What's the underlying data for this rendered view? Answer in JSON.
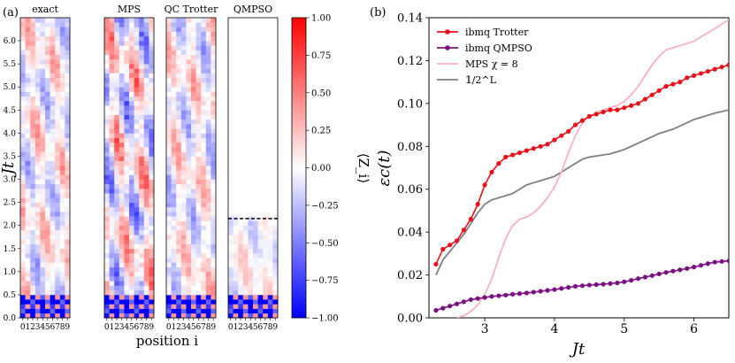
{
  "chart_data": [
    {
      "type": "heatmap",
      "panel_label": "(a)",
      "panels": [
        {
          "title": "exact",
          "truncate_above_t": null,
          "seed": 11
        },
        {
          "title": "MPS",
          "truncate_above_t": null,
          "seed": 23
        },
        {
          "title": "QC Trotter",
          "truncate_above_t": null,
          "seed": 37
        },
        {
          "title": "QMPSO",
          "truncate_above_t": 2.15,
          "seed": 53
        }
      ],
      "positions": [
        "0",
        "1",
        "2",
        "3",
        "4",
        "5",
        "6",
        "7",
        "8",
        "9"
      ],
      "ylabel": "Jt",
      "xlabel": "position i",
      "yticks": [
        "0.0",
        "0.5",
        "1.0",
        "1.5",
        "2.0",
        "2.5",
        "3.0",
        "3.5",
        "4.0",
        "4.5",
        "5.0",
        "5.5",
        "6.0"
      ],
      "ylim": [
        0,
        6.5
      ],
      "colorbar": {
        "label": "⟨Z_i⟩",
        "ticks": [
          "1.00",
          "0.75",
          "0.50",
          "0.25",
          "0.00",
          "−0.25",
          "−0.50",
          "−0.75",
          "−1.00"
        ],
        "range": [
          -1,
          1
        ],
        "colormap": "bwr"
      }
    },
    {
      "type": "line",
      "panel_label": "(b)",
      "xlabel": "Jt",
      "ylabel": "εc(t)",
      "xlim": [
        2.2,
        6.5
      ],
      "ylim": [
        0.0,
        0.14
      ],
      "xticks": [
        "3",
        "4",
        "5",
        "6"
      ],
      "yticks": [
        "0.00",
        "0.02",
        "0.04",
        "0.06",
        "0.08",
        "0.10",
        "0.12",
        "0.14"
      ],
      "legend_position": "top-left",
      "series": [
        {
          "name": "ibmq Trotter",
          "color": "#e8111b",
          "markers": true,
          "x": [
            2.3,
            2.4,
            2.5,
            2.6,
            2.7,
            2.8,
            2.9,
            3.0,
            3.1,
            3.2,
            3.3,
            3.4,
            3.5,
            3.6,
            3.7,
            3.8,
            3.9,
            4.0,
            4.1,
            4.2,
            4.3,
            4.4,
            4.5,
            4.6,
            4.7,
            4.8,
            4.9,
            5.0,
            5.1,
            5.2,
            5.3,
            5.4,
            5.5,
            5.6,
            5.7,
            5.8,
            5.9,
            6.0,
            6.1,
            6.2,
            6.3,
            6.4,
            6.5
          ],
          "values": [
            0.025,
            0.032,
            0.034,
            0.036,
            0.041,
            0.046,
            0.053,
            0.062,
            0.068,
            0.072,
            0.075,
            0.076,
            0.077,
            0.078,
            0.079,
            0.08,
            0.081,
            0.083,
            0.085,
            0.087,
            0.09,
            0.092,
            0.094,
            0.095,
            0.096,
            0.097,
            0.097,
            0.098,
            0.099,
            0.1,
            0.102,
            0.104,
            0.106,
            0.108,
            0.109,
            0.11,
            0.112,
            0.113,
            0.114,
            0.115,
            0.116,
            0.117,
            0.118
          ]
        },
        {
          "name": "ibmq QMPSO",
          "color": "#7b0f83",
          "markers": true,
          "x": [
            2.3,
            2.4,
            2.5,
            2.6,
            2.7,
            2.8,
            2.9,
            3.0,
            3.1,
            3.2,
            3.3,
            3.4,
            3.5,
            3.6,
            3.7,
            3.8,
            3.9,
            4.0,
            4.1,
            4.2,
            4.3,
            4.4,
            4.5,
            4.6,
            4.7,
            4.8,
            4.9,
            5.0,
            5.1,
            5.2,
            5.3,
            5.4,
            5.5,
            5.6,
            5.7,
            5.8,
            5.9,
            6.0,
            6.1,
            6.2,
            6.3,
            6.4,
            6.5
          ],
          "values": [
            0.0035,
            0.0045,
            0.0055,
            0.0065,
            0.0075,
            0.0085,
            0.009,
            0.0095,
            0.01,
            0.0103,
            0.0106,
            0.011,
            0.0113,
            0.0116,
            0.012,
            0.0124,
            0.0128,
            0.0132,
            0.0137,
            0.0142,
            0.0147,
            0.015,
            0.0153,
            0.0155,
            0.0157,
            0.016,
            0.0163,
            0.0168,
            0.0175,
            0.0183,
            0.019,
            0.0197,
            0.0205,
            0.0212,
            0.0218,
            0.0224,
            0.023,
            0.0237,
            0.0245,
            0.0253,
            0.026,
            0.0263,
            0.0266
          ]
        },
        {
          "name": "MPS χ = 8",
          "color": "#f7b2c2",
          "markers": false,
          "x": [
            2.6,
            2.7,
            2.8,
            2.9,
            3.0,
            3.1,
            3.2,
            3.3,
            3.4,
            3.5,
            3.6,
            3.7,
            3.8,
            3.9,
            4.0,
            4.1,
            4.2,
            4.3,
            4.4,
            4.5,
            4.6,
            4.7,
            4.8,
            4.9,
            5.0,
            5.1,
            5.2,
            5.3,
            5.4,
            5.5,
            5.6,
            5.7,
            5.8,
            5.9,
            6.0,
            6.1,
            6.2,
            6.3,
            6.4,
            6.5
          ],
          "values": [
            0.0,
            0.001,
            0.003,
            0.006,
            0.011,
            0.018,
            0.028,
            0.037,
            0.043,
            0.046,
            0.047,
            0.049,
            0.052,
            0.056,
            0.061,
            0.068,
            0.077,
            0.085,
            0.091,
            0.094,
            0.096,
            0.097,
            0.098,
            0.099,
            0.101,
            0.104,
            0.108,
            0.113,
            0.118,
            0.122,
            0.125,
            0.126,
            0.127,
            0.128,
            0.129,
            0.131,
            0.133,
            0.135,
            0.137,
            0.139
          ]
        },
        {
          "name": "𝟙/2^L",
          "color": "#808080",
          "markers": false,
          "x": [
            2.3,
            2.4,
            2.5,
            2.6,
            2.7,
            2.8,
            2.9,
            3.0,
            3.1,
            3.2,
            3.3,
            3.4,
            3.5,
            3.6,
            3.7,
            3.8,
            3.9,
            4.0,
            4.1,
            4.2,
            4.3,
            4.4,
            4.5,
            4.6,
            4.7,
            4.8,
            4.9,
            5.0,
            5.1,
            5.2,
            5.3,
            5.4,
            5.5,
            5.6,
            5.7,
            5.8,
            5.9,
            6.0,
            6.1,
            6.2,
            6.3,
            6.4,
            6.5
          ],
          "values": [
            0.02,
            0.027,
            0.031,
            0.035,
            0.039,
            0.044,
            0.049,
            0.053,
            0.055,
            0.056,
            0.057,
            0.058,
            0.06,
            0.062,
            0.063,
            0.064,
            0.065,
            0.066,
            0.068,
            0.07,
            0.072,
            0.074,
            0.075,
            0.0755,
            0.076,
            0.0765,
            0.0775,
            0.0785,
            0.08,
            0.0815,
            0.083,
            0.0845,
            0.086,
            0.087,
            0.088,
            0.0895,
            0.091,
            0.0925,
            0.0935,
            0.0945,
            0.0955,
            0.0962,
            0.097
          ]
        }
      ]
    }
  ]
}
